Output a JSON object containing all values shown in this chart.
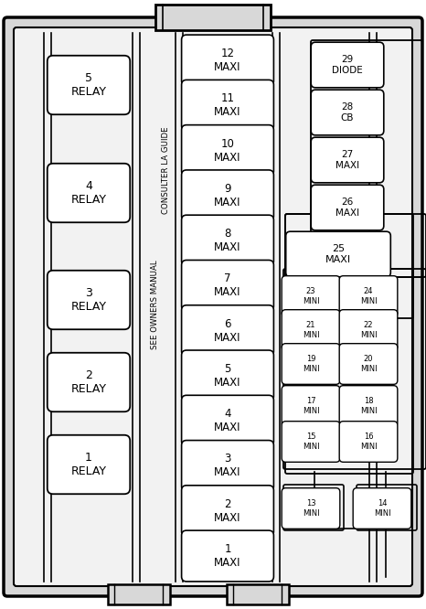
{
  "fig_width": 4.66,
  "fig_height": 6.66,
  "bg_color": "#ffffff",
  "line_color": "#000000",
  "gray_fill": "#e8e8e8",
  "white_fill": "#ffffff",
  "relay_labels": [
    "5\nRELAY",
    "4\nRELAY",
    "3\nRELAY",
    "2\nRELAY",
    "1\nRELAY"
  ],
  "maxi_labels": [
    "12\nMAXI",
    "11\nMAXI",
    "10\nMAXI",
    "9\nMAXI",
    "8\nMAXI",
    "7\nMAXI",
    "6\nMAXI",
    "5\nMAXI",
    "4\nMAXI",
    "3\nMAXI",
    "2\nMAXI",
    "1\nMAXI"
  ],
  "right_top_labels": [
    "29\nDIODE",
    "28\nCB",
    "27\nMAXI",
    "26\nMAXI"
  ],
  "text_v1": "SEE OWNERS MANUAL",
  "text_v2": "CONSULTER LA GUIDE"
}
